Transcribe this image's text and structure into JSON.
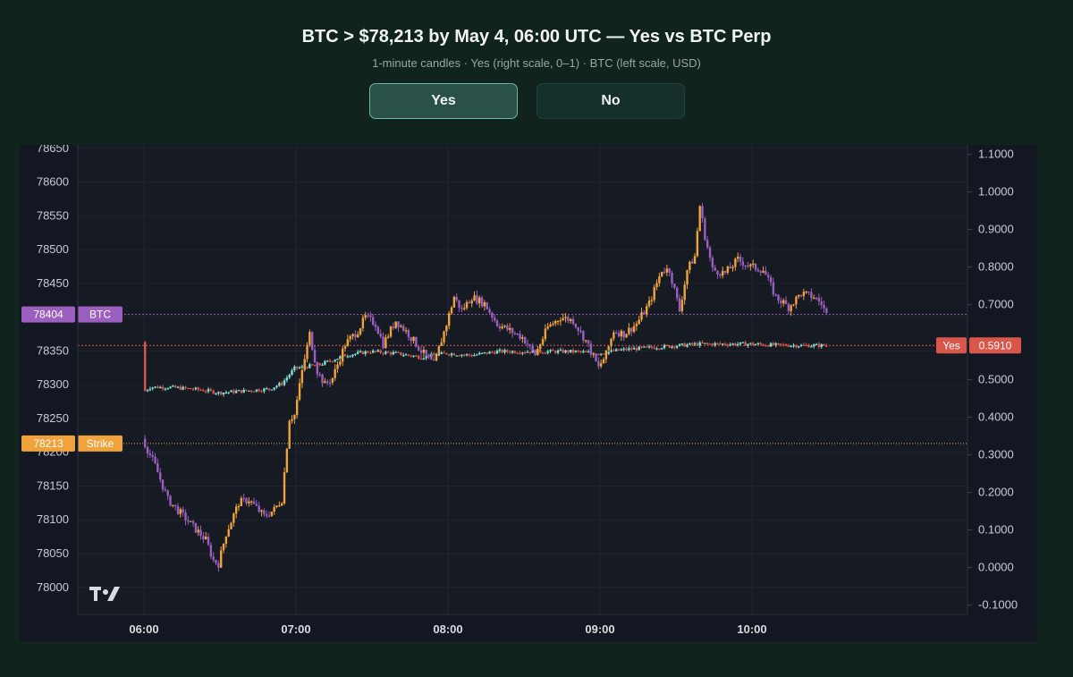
{
  "header": {
    "title": "BTC > $78,213 by May 4, 06:00 UTC — Yes vs BTC Perp",
    "subtitle": "1-minute candles · Yes (right scale, 0–1) · BTC (left scale, USD)"
  },
  "toggle": {
    "yes_label": "Yes",
    "no_label": "No",
    "selected": "Yes"
  },
  "colors": {
    "btc_up": "#f0a33a",
    "btc_down": "#9b5fc0",
    "yes_up": "#7fe0d0",
    "yes_down": "#d9564a",
    "strike": "#f0a33a",
    "btc_marker": "#9b5fc0",
    "yes_marker": "#d9564a"
  },
  "logo": {
    "text": "TV"
  },
  "chart_data": {
    "type": "candlestick",
    "interval": "1 minute",
    "x_ticks": [
      "06:00",
      "07:00",
      "08:00",
      "09:00",
      "10:00"
    ],
    "left_axis": {
      "unit": "USD",
      "ylim": [
        77960,
        78655
      ],
      "ticks": [
        78000,
        78050,
        78100,
        78150,
        78200,
        78250,
        78300,
        78350,
        78400,
        78450,
        78500,
        78550,
        78600,
        78650
      ]
    },
    "right_axis": {
      "ylim": [
        -0.125,
        1.125
      ],
      "ticks": [
        "-0.1000",
        "0.0000",
        "0.1000",
        "0.2000",
        "0.3000",
        "0.4000",
        "0.5000",
        "0.6000",
        "0.7000",
        "0.8000",
        "0.9000",
        "1.0000",
        "1.1000"
      ]
    },
    "reference_lines": [
      {
        "label": "Strike",
        "value_text": "78213",
        "value": 78213,
        "axis": "left"
      },
      {
        "label": "BTC",
        "value_text": "78404",
        "value": 78404,
        "axis": "left"
      },
      {
        "label": "Yes",
        "value_text": "0.5910",
        "value": 0.591,
        "axis": "right"
      }
    ],
    "series": [
      {
        "name": "BTC",
        "axis": "left",
        "points": [
          [
            "06:00",
            78220
          ],
          [
            "06:05",
            78180
          ],
          [
            "06:10",
            78130
          ],
          [
            "06:15",
            78110
          ],
          [
            "06:20",
            78090
          ],
          [
            "06:25",
            78070
          ],
          [
            "06:28",
            78040
          ],
          [
            "06:30",
            78035
          ],
          [
            "06:33",
            78080
          ],
          [
            "06:38",
            78125
          ],
          [
            "06:42",
            78130
          ],
          [
            "06:48",
            78105
          ],
          [
            "06:52",
            78115
          ],
          [
            "06:55",
            78130
          ],
          [
            "06:58",
            78250
          ],
          [
            "07:00",
            78255
          ],
          [
            "07:03",
            78320
          ],
          [
            "07:06",
            78375
          ],
          [
            "07:09",
            78320
          ],
          [
            "07:12",
            78300
          ],
          [
            "07:15",
            78310
          ],
          [
            "07:20",
            78360
          ],
          [
            "07:25",
            78380
          ],
          [
            "07:28",
            78400
          ],
          [
            "07:32",
            78390
          ],
          [
            "07:35",
            78360
          ],
          [
            "07:40",
            78395
          ],
          [
            "07:45",
            78375
          ],
          [
            "07:50",
            78350
          ],
          [
            "07:55",
            78330
          ],
          [
            "08:00",
            78390
          ],
          [
            "08:03",
            78430
          ],
          [
            "08:06",
            78410
          ],
          [
            "08:10",
            78430
          ],
          [
            "08:15",
            78420
          ],
          [
            "08:20",
            78390
          ],
          [
            "08:25",
            78380
          ],
          [
            "08:30",
            78370
          ],
          [
            "08:35",
            78345
          ],
          [
            "08:40",
            78385
          ],
          [
            "08:45",
            78400
          ],
          [
            "08:50",
            78395
          ],
          [
            "08:55",
            78365
          ],
          [
            "09:00",
            78325
          ],
          [
            "09:03",
            78345
          ],
          [
            "09:06",
            78380
          ],
          [
            "09:10",
            78375
          ],
          [
            "09:15",
            78390
          ],
          [
            "09:20",
            78420
          ],
          [
            "09:25",
            78470
          ],
          [
            "09:28",
            78470
          ],
          [
            "09:32",
            78410
          ],
          [
            "09:35",
            78470
          ],
          [
            "09:38",
            78490
          ],
          [
            "09:40",
            78565
          ],
          [
            "09:42",
            78520
          ],
          [
            "09:45",
            78470
          ],
          [
            "09:50",
            78465
          ],
          [
            "09:55",
            78485
          ],
          [
            "10:00",
            78475
          ],
          [
            "10:05",
            78470
          ],
          [
            "10:10",
            78430
          ],
          [
            "10:15",
            78415
          ],
          [
            "10:20",
            78435
          ],
          [
            "10:25",
            78430
          ],
          [
            "10:28",
            78420
          ],
          [
            "10:30",
            78404
          ]
        ]
      },
      {
        "name": "Yes",
        "axis": "right",
        "points": [
          [
            "06:00",
            0.6
          ],
          [
            "06:01",
            0.47
          ],
          [
            "06:03",
            0.48
          ],
          [
            "06:10",
            0.48
          ],
          [
            "06:20",
            0.475
          ],
          [
            "06:26",
            0.47
          ],
          [
            "06:30",
            0.465
          ],
          [
            "06:40",
            0.47
          ],
          [
            "06:50",
            0.475
          ],
          [
            "06:55",
            0.49
          ],
          [
            "07:00",
            0.53
          ],
          [
            "07:10",
            0.54
          ],
          [
            "07:20",
            0.565
          ],
          [
            "07:30",
            0.575
          ],
          [
            "07:40",
            0.57
          ],
          [
            "07:50",
            0.56
          ],
          [
            "08:00",
            0.57
          ],
          [
            "08:10",
            0.565
          ],
          [
            "08:20",
            0.575
          ],
          [
            "08:30",
            0.575
          ],
          [
            "08:40",
            0.575
          ],
          [
            "08:50",
            0.575
          ],
          [
            "09:00",
            0.57
          ],
          [
            "09:10",
            0.58
          ],
          [
            "09:20",
            0.585
          ],
          [
            "09:30",
            0.59
          ],
          [
            "09:40",
            0.595
          ],
          [
            "09:50",
            0.595
          ],
          [
            "10:00",
            0.595
          ],
          [
            "10:10",
            0.592
          ],
          [
            "10:20",
            0.591
          ],
          [
            "10:30",
            0.591
          ]
        ]
      }
    ]
  }
}
